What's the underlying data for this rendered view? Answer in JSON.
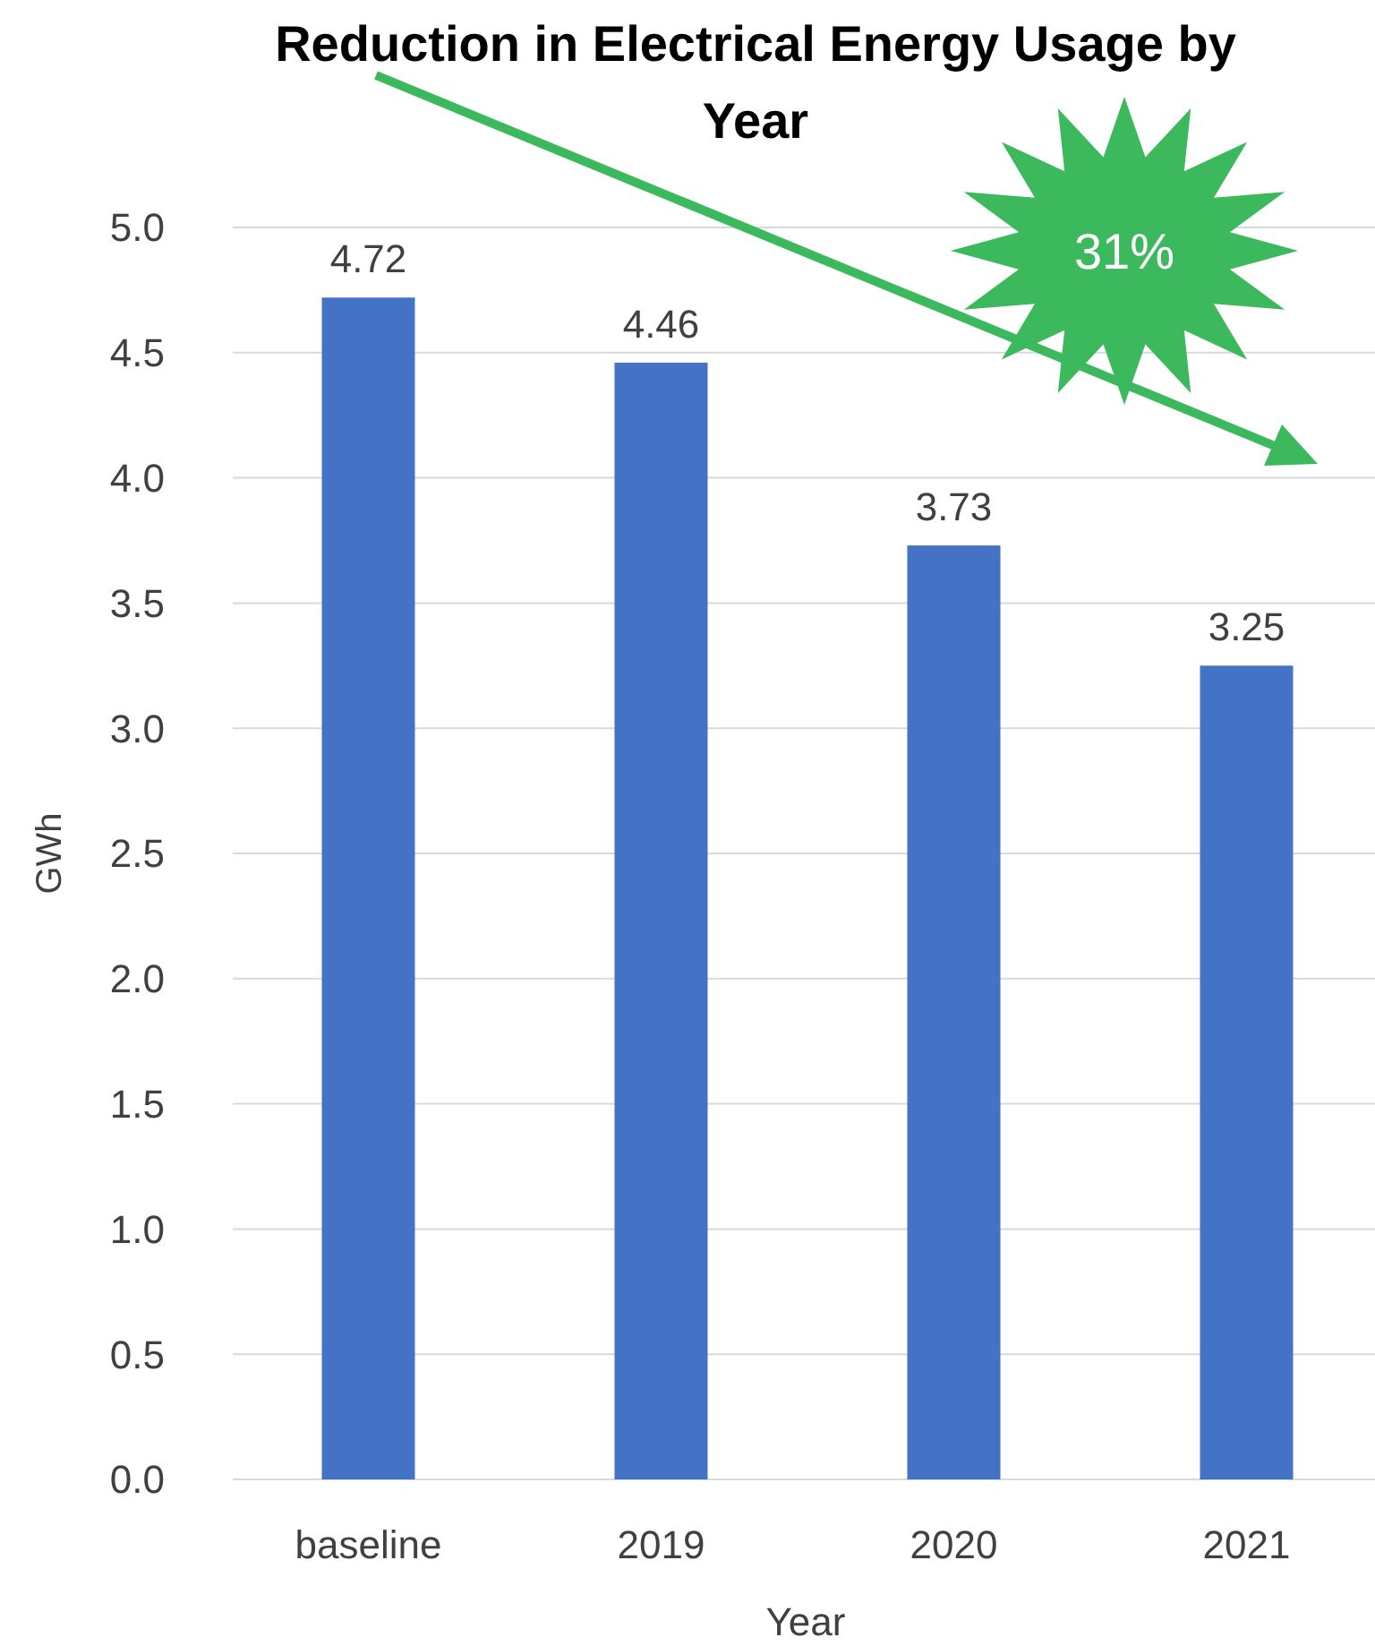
{
  "chart_data": {
    "type": "bar",
    "title": "Reduction in Electrical Energy Usage by Year",
    "xlabel": "Year",
    "ylabel": "GWh",
    "categories": [
      "baseline",
      "2019",
      "2020",
      "2021"
    ],
    "values": [
      4.72,
      4.46,
      3.73,
      3.25
    ],
    "color": "#4472c4",
    "ylim": [
      0,
      5
    ],
    "yticks": [
      {
        "value": 0,
        "label": "0.0"
      },
      {
        "value": 0.5,
        "label": "0.5"
      },
      {
        "value": 1,
        "label": "1.0"
      },
      {
        "value": 1.5,
        "label": "1.5"
      },
      {
        "value": 2,
        "label": "2.0"
      },
      {
        "value": 2.5,
        "label": "2.5"
      },
      {
        "value": 3,
        "label": "3.0"
      },
      {
        "value": 3.5,
        "label": "3.5"
      },
      {
        "value": 4,
        "label": "4.0"
      },
      {
        "value": 4.5,
        "label": "4.5"
      },
      {
        "value": 5,
        "label": "5.0"
      }
    ],
    "grid": "y",
    "data_labels": true,
    "annotations": [
      "31%"
    ]
  }
}
